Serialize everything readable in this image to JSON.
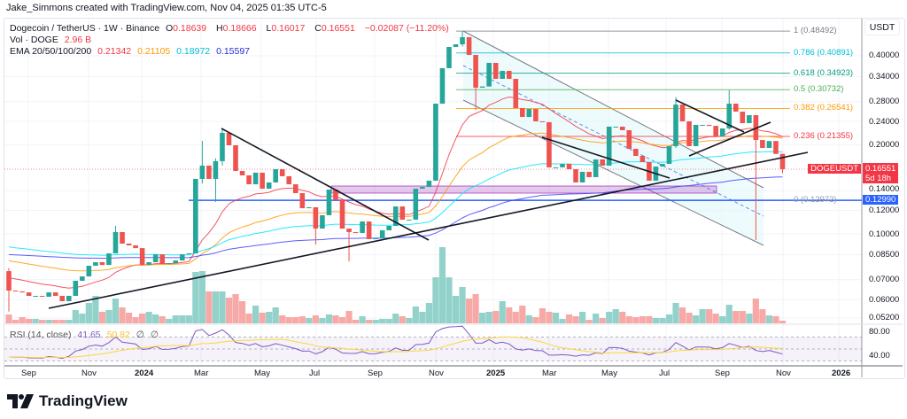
{
  "credit": "Jake_Simmons created with TradingView.com, Nov 04, 2025 01:35 UTC-5",
  "legend": {
    "symbol": "Dogecoin / TetherUS · 1W · Binance",
    "o_label": "O",
    "open": "0.18639",
    "h_label": "H",
    "high": "0.18666",
    "l_label": "L",
    "low": "0.16017",
    "c_label": "C",
    "close": "0.16551",
    "change": "−0.02087 (−11.20%)",
    "vol_label": "Vol · DOGE",
    "vol_value": "2.96 B",
    "ema_label": "EMA 20/50/100/200",
    "ema20": "0.21342",
    "ema50": "0.21105",
    "ema100": "0.18972",
    "ema200": "0.15597",
    "rsi_label": "RSI (14, close)",
    "rsi_value": "41.65",
    "rsi_ma": "50.82",
    "rsi_extra1": "∅",
    "rsi_extra2": "∅"
  },
  "price_axis": {
    "currency": "USDT",
    "ticks": [
      "0.40000",
      "0.34000",
      "0.28000",
      "0.24000",
      "0.20000",
      "0.14000",
      "0.12000",
      "0.10000",
      "0.08500",
      "0.07000",
      "0.06000",
      "0.05200"
    ],
    "last_symbol": "DOGEUSDT",
    "last_price": "0.16551",
    "countdown": "5d 18h",
    "hline_price": "0.12990"
  },
  "rsi_axis": {
    "ticks": [
      "80.00",
      "40.00"
    ]
  },
  "time_axis": {
    "ticks": [
      "Sep",
      "Nov",
      "2024",
      "Mar",
      "May",
      "Jul",
      "Sep",
      "Nov",
      "2025",
      "Mar",
      "May",
      "Jul",
      "Sep",
      "Nov",
      "2026"
    ]
  },
  "fib_levels": [
    {
      "label": "1 (0.48492)",
      "price": 0.48492,
      "color": "#787b86"
    },
    {
      "label": "0.786 (0.40891)",
      "price": 0.40891,
      "color": "#00bcd4"
    },
    {
      "label": "0.618 (0.34923)",
      "price": 0.34923,
      "color": "#089981"
    },
    {
      "label": "0.5 (0.30732)",
      "price": 0.30732,
      "color": "#4caf50"
    },
    {
      "label": "0.382 (0.26541)",
      "price": 0.26541,
      "color": "#ff9800"
    },
    {
      "label": "0.236 (0.21355)",
      "price": 0.21355,
      "color": "#f23645"
    },
    {
      "label": "0 (0.12972)",
      "price": 0.12972,
      "color": "#787b86"
    }
  ],
  "colors": {
    "up": "#26a69a",
    "down": "#ef5350",
    "vol_up": "#92d2ca",
    "vol_down": "#f7a9a7",
    "ema20": "#f23645",
    "ema50": "#ff9800",
    "ema100": "#00e5ff",
    "ema200": "#3f3fff",
    "rsi": "#7e57c2",
    "rsi_ma": "#fdd835",
    "hline": "#2962ff",
    "zone": "#9c27b0"
  },
  "brand": "TradingView",
  "chart_data": {
    "type": "candlestick",
    "interval": "1W",
    "scale": "log",
    "ylim": [
      0.052,
      0.5
    ],
    "grid": true,
    "first_open": 0.0748,
    "closes": [
      0.0643,
      0.0639,
      0.0634,
      0.0617,
      0.0617,
      0.0613,
      0.0634,
      0.0617,
      0.0592,
      0.0617,
      0.0694,
      0.0718,
      0.078,
      0.0802,
      0.0785,
      0.0859,
      0.1014,
      0.0927,
      0.0914,
      0.0895,
      0.0785,
      0.0802,
      0.0853,
      0.0791,
      0.0796,
      0.0813,
      0.0853,
      0.0859,
      0.1534,
      0.1701,
      0.1534,
      0.1761,
      0.2195,
      0.1993,
      0.1632,
      0.1577,
      0.1471,
      0.161,
      0.1421,
      0.1492,
      0.1654,
      0.1566,
      0.1471,
      0.1373,
      0.1221,
      0.123,
      0.1042,
      0.1156,
      0.1412,
      0.13,
      0.1042,
      0.1014,
      0.1007,
      0.1101,
      0.096,
      0.0966,
      0.1028,
      0.1064,
      0.1238,
      0.1117,
      0.1117,
      0.1421,
      0.1441,
      0.1513,
      0.2756,
      0.3632,
      0.4285,
      0.4374,
      0.4623,
      0.4027,
      0.3121,
      0.315,
      0.3786,
      0.3343,
      0.3557,
      0.3343,
      0.2663,
      0.2485,
      0.2644,
      0.2401,
      0.2385,
      0.1678,
      0.1678,
      0.1724,
      0.1654,
      0.1492,
      0.1621,
      0.1555,
      0.1785,
      0.1701,
      0.2304,
      0.2304,
      0.2241,
      0.1939,
      0.1835,
      0.1748,
      0.1513,
      0.1689,
      0.1724,
      0.1979,
      0.2737,
      0.2401,
      0.1979,
      0.2336,
      0.2336,
      0.2318,
      0.2136,
      0.2272,
      0.2756,
      0.259,
      0.2368,
      0.252,
      0.2077,
      0.1952,
      0.206,
      0.1864,
      0.16551
    ],
    "wicks": {
      "0": [
        0.0546,
        0.0767
      ],
      "16": [
        0.0995,
        0.1064
      ],
      "29": [
        0.148,
        0.2063
      ],
      "31": [
        0.1282,
        0.18
      ],
      "32": [
        0.17,
        0.2272
      ],
      "46": [
        0.092,
        0.123
      ],
      "51": [
        0.0807,
        0.1042
      ],
      "68": [
        0.43,
        0.4849
      ],
      "70": [
        0.2627,
        0.4027
      ],
      "100": [
        0.195,
        0.29
      ],
      "108": [
        0.225,
        0.3059
      ],
      "112": [
        0.0953,
        0.252
      ],
      "116": [
        0.16017,
        0.18666
      ]
    },
    "volume_b": [
      10,
      4,
      7,
      5,
      5,
      4,
      4,
      4,
      4,
      4,
      15,
      11,
      23,
      31,
      13,
      15,
      28,
      18,
      12,
      7,
      11,
      13,
      10,
      8,
      5,
      9,
      9,
      9,
      58,
      59,
      36,
      36,
      36,
      29,
      33,
      25,
      11,
      20,
      12,
      13,
      18,
      9,
      7,
      7,
      8,
      6,
      9,
      6,
      10,
      9,
      7,
      14,
      4,
      8,
      4,
      4,
      5,
      5,
      11,
      8,
      6,
      19,
      13,
      23,
      52,
      86,
      52,
      31,
      41,
      28,
      33,
      12,
      13,
      14,
      25,
      18,
      13,
      20,
      9,
      7,
      17,
      13,
      12,
      5,
      10,
      8,
      13,
      4,
      11,
      6,
      13,
      16,
      13,
      8,
      7,
      8,
      8,
      6,
      6,
      10,
      23,
      18,
      12,
      9,
      16,
      16,
      11,
      8,
      21,
      14,
      14,
      11,
      28,
      16,
      9,
      8,
      2.96
    ]
  }
}
